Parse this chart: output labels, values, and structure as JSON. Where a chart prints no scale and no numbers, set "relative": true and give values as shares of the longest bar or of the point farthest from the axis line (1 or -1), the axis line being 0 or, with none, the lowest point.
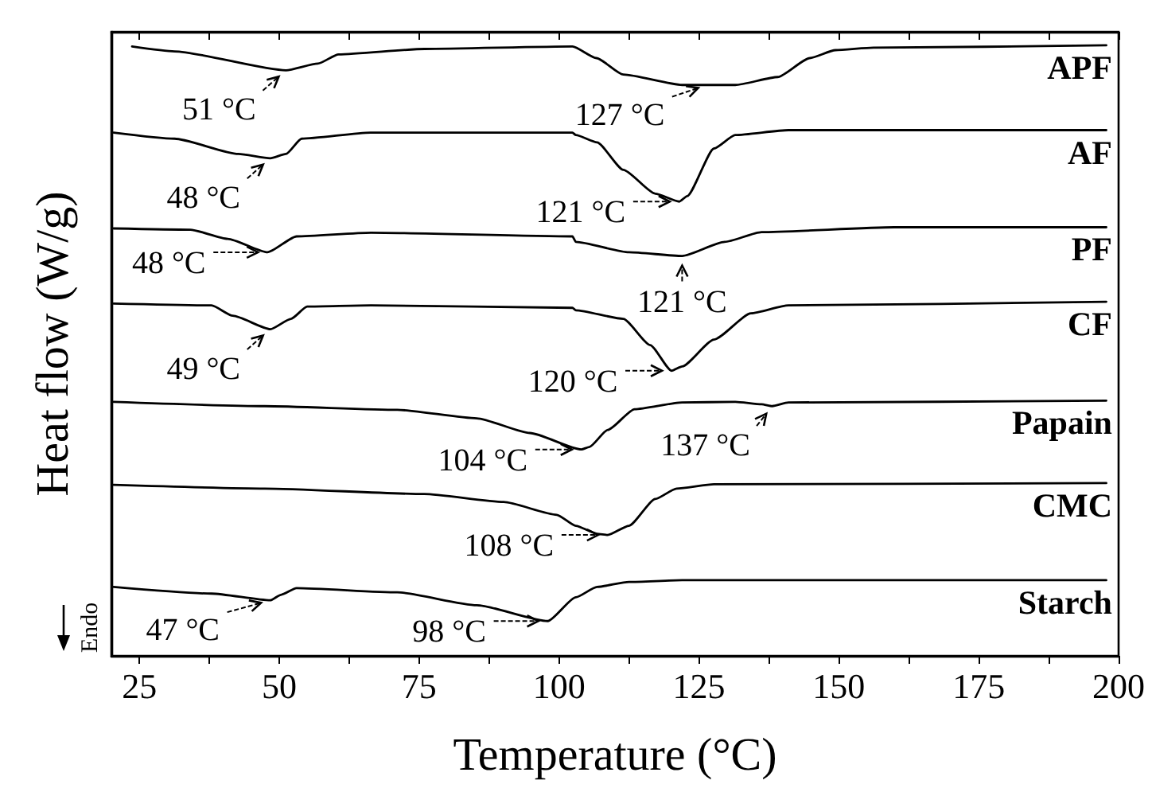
{
  "chart_data": {
    "type": "line",
    "relative": true,
    "xlabel": "Temperature (°C)",
    "ylabel": "Heat flow (W/g)",
    "xlim": [
      20,
      200
    ],
    "xticks": [
      25,
      {
        "value": 37.5,
        "label": null
      },
      50,
      {
        "value": 62.5,
        "label": null
      },
      75,
      {
        "value": 87.5,
        "label": null
      },
      100,
      {
        "value": 112.5,
        "label": null
      },
      125,
      {
        "value": 137.5,
        "label": null
      },
      150,
      {
        "value": 162.5,
        "label": null
      },
      175,
      {
        "value": 187.5,
        "label": null
      },
      200
    ],
    "grid": false,
    "legend": "right",
    "marker": "none",
    "line_style": "solid",
    "series": [
      {
        "name": "APF",
        "color": "#000000",
        "x": [
          23.7,
          31.3,
          51.2,
          56.9,
          60.6,
          76.0,
          102.4,
          106.7,
          111.5,
          122.0,
          131.5,
          139.1,
          144.8,
          149.4,
          156.2,
          197.8
        ],
        "values": [
          0.998,
          0.99,
          0.959,
          0.97,
          0.985,
          0.994,
          0.998,
          0.979,
          0.952,
          0.935,
          0.935,
          0.948,
          0.979,
          0.992,
          0.996,
          1.0
        ]
      },
      {
        "name": "AF",
        "color": "#000000",
        "x": [
          20.4,
          31.3,
          42.7,
          48.4,
          51.2,
          54.0,
          66.3,
          102.4,
          103.0,
          106.8,
          111.5,
          117.2,
          121.5,
          122.9,
          127.7,
          131.5,
          141.0,
          197.8
        ],
        "values": [
          0.857,
          0.847,
          0.822,
          0.815,
          0.822,
          0.847,
          0.857,
          0.857,
          0.853,
          0.841,
          0.796,
          0.757,
          0.744,
          0.753,
          0.831,
          0.853,
          0.861,
          0.861
        ]
      },
      {
        "name": "PF",
        "color": "#000000",
        "x": [
          20.4,
          34.1,
          40.8,
          47.9,
          53.1,
          66.4,
          102.4,
          103.0,
          112.5,
          122.0,
          129.6,
          136.2,
          159.9,
          197.8
        ],
        "values": [
          0.7,
          0.698,
          0.683,
          0.661,
          0.687,
          0.693,
          0.687,
          0.678,
          0.661,
          0.655,
          0.678,
          0.694,
          0.702,
          0.702
        ]
      },
      {
        "name": "CF",
        "color": "#000000",
        "x": [
          20.4,
          37.9,
          41.7,
          48.4,
          52.1,
          55.0,
          66.4,
          102.4,
          103.0,
          111.5,
          116.3,
          120.1,
          122.0,
          127.7,
          134.3,
          141.0,
          197.8
        ],
        "values": [
          0.577,
          0.574,
          0.557,
          0.535,
          0.552,
          0.572,
          0.574,
          0.57,
          0.566,
          0.552,
          0.509,
          0.467,
          0.474,
          0.518,
          0.561,
          0.574,
          0.58
        ]
      },
      {
        "name": "Papain",
        "color": "#000000",
        "x": [
          20.4,
          47.4,
          71.1,
          85.3,
          94.8,
          104.0,
          105.4,
          108.7,
          113.5,
          122.0,
          131.5,
          136.2,
          138.1,
          141.0,
          197.8
        ],
        "values": [
          0.416,
          0.409,
          0.403,
          0.389,
          0.365,
          0.338,
          0.342,
          0.37,
          0.404,
          0.415,
          0.416,
          0.412,
          0.409,
          0.415,
          0.418
        ]
      },
      {
        "name": "CMC",
        "color": "#000000",
        "x": [
          20.4,
          47.4,
          75.9,
          90.1,
          99.6,
          103.0,
          106.8,
          108.7,
          112.5,
          117.2,
          121.0,
          127.7,
          197.8
        ],
        "values": [
          0.28,
          0.274,
          0.265,
          0.252,
          0.231,
          0.213,
          0.2,
          0.198,
          0.213,
          0.257,
          0.274,
          0.281,
          0.283
        ]
      },
      {
        "name": "Starch",
        "color": "#000000",
        "x": [
          20.4,
          37.9,
          48.4,
          50.3,
          53.1,
          71.1,
          85.3,
          98.0,
          103.0,
          106.8,
          112.5,
          122.0,
          197.8
        ],
        "values": [
          0.113,
          0.102,
          0.091,
          0.1,
          0.111,
          0.104,
          0.083,
          0.057,
          0.096,
          0.113,
          0.121,
          0.124,
          0.124
        ]
      }
    ],
    "annotations": [
      {
        "text": "51 °C",
        "x": 51.2,
        "y": 0.959
      },
      {
        "text": "127 °C",
        "x": 126.5,
        "y": 0.935
      },
      {
        "text": "48 °C",
        "x": 48.4,
        "y": 0.815
      },
      {
        "text": "121 °C",
        "x": 121.5,
        "y": 0.744
      },
      {
        "text": "48 °C",
        "x": 47.9,
        "y": 0.661
      },
      {
        "text": "121 °C",
        "x": 122.0,
        "y": 0.655
      },
      {
        "text": "49 °C",
        "x": 48.4,
        "y": 0.535
      },
      {
        "text": "120 °C",
        "x": 120.1,
        "y": 0.467
      },
      {
        "text": "104 °C",
        "x": 104.0,
        "y": 0.338
      },
      {
        "text": "137 °C",
        "x": 138.1,
        "y": 0.409
      },
      {
        "text": "108 °C",
        "x": 108.7,
        "y": 0.198
      },
      {
        "text": "47 °C",
        "x": 48.4,
        "y": 0.091
      },
      {
        "text": "98 °C",
        "x": 98.0,
        "y": 0.057
      },
      "Endo"
    ]
  }
}
